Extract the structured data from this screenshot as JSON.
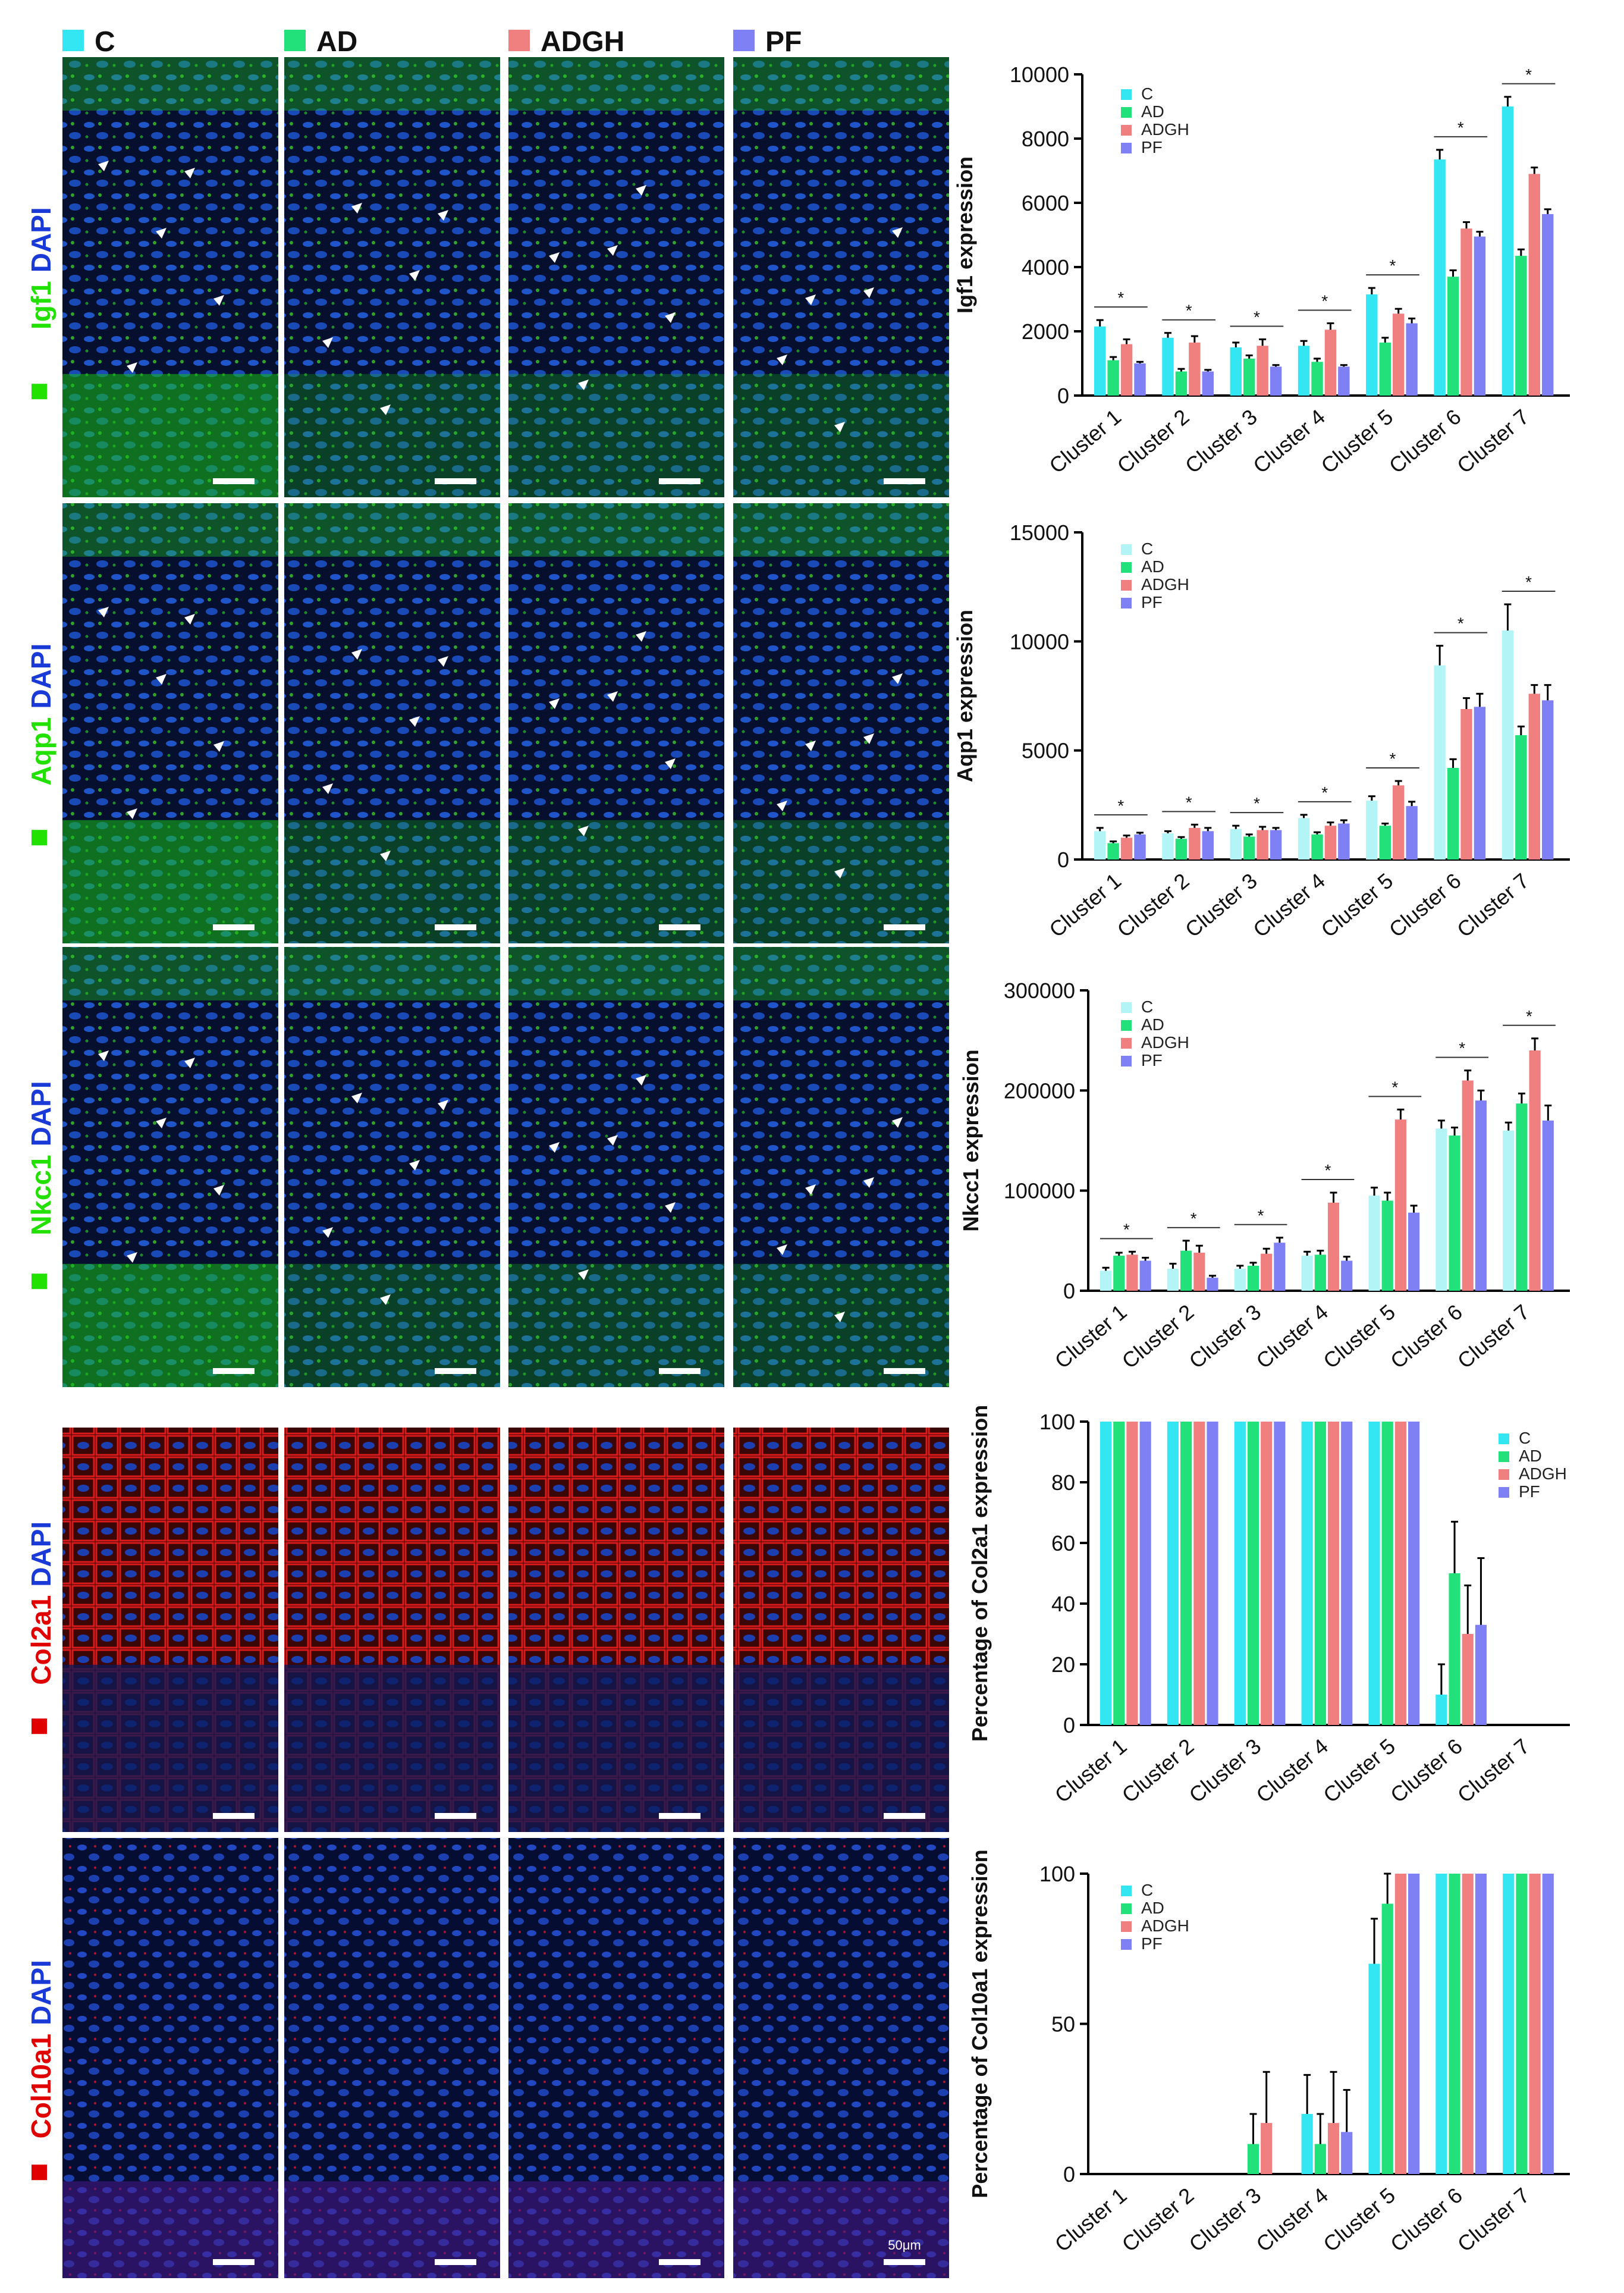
{
  "header": {
    "groups": [
      {
        "label": "C",
        "color": "#33e6f2"
      },
      {
        "label": "AD",
        "color": "#22e07a"
      },
      {
        "label": "ADGH",
        "color": "#f08080"
      },
      {
        "label": "PF",
        "color": "#8080f5"
      }
    ]
  },
  "rows": [
    {
      "marker_label": "Igf1",
      "dapi_label": "DAPI",
      "marker_color": "#22e000",
      "stain": "green"
    },
    {
      "marker_label": "Aqp1",
      "dapi_label": "DAPI",
      "marker_color": "#22e000",
      "stain": "green"
    },
    {
      "marker_label": "Nkcc1",
      "dapi_label": "DAPI",
      "marker_color": "#22e000",
      "stain": "green"
    },
    {
      "marker_label": "Col2a1",
      "dapi_label": "DAPI",
      "marker_color": "#e00000",
      "stain": "red"
    },
    {
      "marker_label": "Col10a1",
      "dapi_label": "DAPI",
      "marker_color": "#e00000",
      "stain": "red_sparse"
    }
  ],
  "scale_bar_label": "50μm",
  "significance_marker": "*",
  "chart_data": [
    {
      "type": "bar",
      "ylabel": "Igf1 expression",
      "ylim": [
        0,
        10000
      ],
      "yticks": [
        "0",
        "2000",
        "4000",
        "6000",
        "8000",
        "10000"
      ],
      "categories": [
        "Cluster 1",
        "Cluster 2",
        "Cluster 3",
        "Cluster 4",
        "Cluster 5",
        "Cluster 6",
        "Cluster 7"
      ],
      "series": [
        {
          "name": "C",
          "color": "#33e6f2",
          "values": [
            2150,
            1800,
            1500,
            1550,
            3150,
            7350,
            9000
          ],
          "errors": [
            200,
            150,
            150,
            150,
            200,
            300,
            300
          ]
        },
        {
          "name": "AD",
          "color": "#22e07a",
          "values": [
            1100,
            750,
            1150,
            1050,
            1650,
            3700,
            4350
          ],
          "errors": [
            100,
            80,
            100,
            100,
            150,
            200,
            200
          ]
        },
        {
          "name": "ADGH",
          "color": "#f08080",
          "values": [
            1600,
            1650,
            1550,
            2050,
            2550,
            5200,
            6900
          ],
          "errors": [
            150,
            200,
            200,
            200,
            150,
            200,
            200
          ]
        },
        {
          "name": "PF",
          "color": "#8080f5",
          "values": [
            1000,
            750,
            900,
            900,
            2250,
            4950,
            5650
          ],
          "errors": [
            50,
            50,
            50,
            50,
            150,
            150,
            150
          ]
        }
      ],
      "legend": {
        "position": "top-left"
      },
      "grid": false
    },
    {
      "type": "bar",
      "ylabel": "Aqp1 expression",
      "ylim": [
        0,
        15000
      ],
      "yticks": [
        "0",
        "5000",
        "10000",
        "15000"
      ],
      "categories": [
        "Cluster 1",
        "Cluster 2",
        "Cluster 3",
        "Cluster 4",
        "Cluster 5",
        "Cluster 6",
        "Cluster 7"
      ],
      "series": [
        {
          "name": "C",
          "color": "#b3f5f7",
          "values": [
            1300,
            1200,
            1400,
            1900,
            2700,
            8900,
            10500
          ],
          "errors": [
            150,
            100,
            150,
            150,
            200,
            900,
            1200
          ]
        },
        {
          "name": "AD",
          "color": "#22e07a",
          "values": [
            750,
            950,
            1050,
            1150,
            1550,
            4200,
            5700
          ],
          "errors": [
            80,
            80,
            100,
            100,
            100,
            400,
            400
          ]
        },
        {
          "name": "ADGH",
          "color": "#f08080",
          "values": [
            1000,
            1450,
            1350,
            1550,
            3400,
            6900,
            7600
          ],
          "errors": [
            100,
            150,
            150,
            150,
            200,
            500,
            400
          ]
        },
        {
          "name": "PF",
          "color": "#8080f5",
          "values": [
            1150,
            1300,
            1350,
            1650,
            2450,
            7000,
            7300
          ],
          "errors": [
            80,
            150,
            100,
            150,
            200,
            600,
            700
          ]
        }
      ],
      "legend": {
        "position": "top-left"
      },
      "grid": false
    },
    {
      "type": "bar",
      "ylabel": "Nkcc1 expression",
      "ylim": [
        0,
        300000
      ],
      "yticks": [
        "0",
        "100000",
        "200000",
        "300000"
      ],
      "categories": [
        "Cluster 1",
        "Cluster 2",
        "Cluster 3",
        "Cluster 4",
        "Cluster 5",
        "Cluster 6",
        "Cluster 7"
      ],
      "series": [
        {
          "name": "C",
          "color": "#b3f5f7",
          "values": [
            20000,
            22000,
            22000,
            35000,
            95000,
            162000,
            160000
          ],
          "errors": [
            3000,
            5000,
            3000,
            4000,
            8000,
            8000,
            8000
          ]
        },
        {
          "name": "AD",
          "color": "#22e07a",
          "values": [
            35000,
            40000,
            25000,
            36000,
            90000,
            155000,
            187000
          ],
          "errors": [
            3000,
            10000,
            3000,
            4000,
            8000,
            8000,
            10000
          ]
        },
        {
          "name": "ADGH",
          "color": "#f08080",
          "values": [
            36000,
            38000,
            37000,
            88000,
            171000,
            210000,
            240000
          ],
          "errors": [
            3000,
            7000,
            5000,
            10000,
            10000,
            10000,
            12000
          ]
        },
        {
          "name": "PF",
          "color": "#8080f5",
          "values": [
            30000,
            13000,
            48000,
            30000,
            78000,
            190000,
            170000
          ],
          "errors": [
            3000,
            2000,
            5000,
            4000,
            7000,
            10000,
            15000
          ]
        }
      ],
      "legend": {
        "position": "top-left"
      },
      "grid": false
    },
    {
      "type": "bar",
      "ylabel": "Percentage of Col2a1 expression",
      "ylim": [
        0,
        100
      ],
      "yticks": [
        "0",
        "20",
        "40",
        "60",
        "80",
        "100"
      ],
      "categories": [
        "Cluster 1",
        "Cluster 2",
        "Cluster 3",
        "Cluster 4",
        "Cluster 5",
        "Cluster 6",
        "Cluster 7"
      ],
      "series": [
        {
          "name": "C",
          "color": "#33e6f2",
          "values": [
            100,
            100,
            100,
            100,
            100,
            10,
            0
          ],
          "errors": [
            0,
            0,
            0,
            0,
            0,
            10,
            0
          ]
        },
        {
          "name": "AD",
          "color": "#22e07a",
          "values": [
            100,
            100,
            100,
            100,
            100,
            50,
            0
          ],
          "errors": [
            0,
            0,
            0,
            0,
            0,
            17,
            0
          ]
        },
        {
          "name": "ADGH",
          "color": "#f08080",
          "values": [
            100,
            100,
            100,
            100,
            100,
            30,
            0
          ],
          "errors": [
            0,
            0,
            0,
            0,
            0,
            16,
            0
          ]
        },
        {
          "name": "PF",
          "color": "#8080f5",
          "values": [
            100,
            100,
            100,
            100,
            100,
            33,
            0
          ],
          "errors": [
            0,
            0,
            0,
            0,
            0,
            22,
            0
          ]
        }
      ],
      "legend": {
        "position": "right"
      },
      "grid": false
    },
    {
      "type": "bar",
      "ylabel": "Percentage of Col10a1 expression",
      "ylim": [
        0,
        100
      ],
      "yticks": [
        "0",
        "50",
        "100"
      ],
      "categories": [
        "Cluster 1",
        "Cluster 2",
        "Cluster 3",
        "Cluster 4",
        "Cluster 5",
        "Cluster 6",
        "Cluster 7"
      ],
      "series": [
        {
          "name": "C",
          "color": "#33e6f2",
          "values": [
            0,
            0,
            0,
            20,
            70,
            100,
            100
          ],
          "errors": [
            0,
            0,
            0,
            13,
            15,
            0,
            0
          ]
        },
        {
          "name": "AD",
          "color": "#22e07a",
          "values": [
            0,
            0,
            10,
            10,
            90,
            100,
            100
          ],
          "errors": [
            0,
            0,
            10,
            10,
            10,
            0,
            0
          ]
        },
        {
          "name": "ADGH",
          "color": "#f08080",
          "values": [
            0,
            0,
            17,
            17,
            100,
            100,
            100
          ],
          "errors": [
            0,
            0,
            17,
            17,
            0,
            0,
            0
          ]
        },
        {
          "name": "PF",
          "color": "#8080f5",
          "values": [
            0,
            0,
            0,
            14,
            100,
            100,
            100
          ],
          "errors": [
            0,
            0,
            0,
            14,
            0,
            0,
            0
          ]
        }
      ],
      "legend": {
        "position": "top-left"
      },
      "grid": false
    }
  ]
}
